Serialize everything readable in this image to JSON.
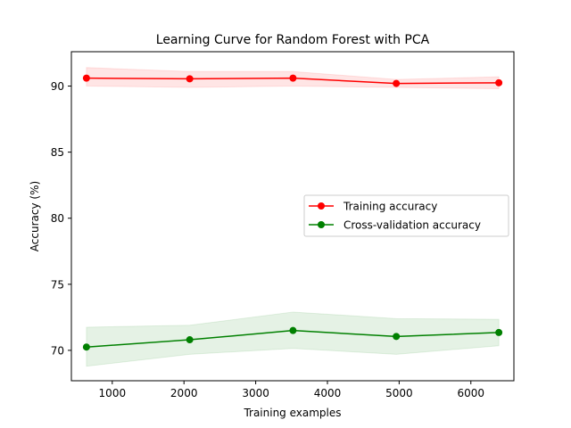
{
  "chart_data": {
    "type": "line",
    "title": "Learning Curve for Random Forest with PCA",
    "xlabel": "Training examples",
    "ylabel": "Accuracy (%)",
    "xlim": [
      430,
      6600
    ],
    "ylim": [
      67.7,
      92.6
    ],
    "x_ticks": [
      1000,
      2000,
      3000,
      4000,
      5000,
      6000
    ],
    "y_ticks": [
      70,
      75,
      80,
      85,
      90
    ],
    "grid": false,
    "legend_position": "center-right",
    "x": [
      640,
      2080,
      3520,
      4960,
      6390
    ],
    "series": [
      {
        "name": "Training accuracy",
        "color": "#ff0000",
        "band_color": "#ff0000",
        "values": [
          90.6,
          90.55,
          90.6,
          90.2,
          90.25
        ],
        "band_lower": [
          90.0,
          89.9,
          90.0,
          89.9,
          89.8
        ],
        "band_upper": [
          91.4,
          91.1,
          91.1,
          90.5,
          90.7
        ]
      },
      {
        "name": "Cross-validation accuracy",
        "color": "#008000",
        "band_color": "#008000",
        "values": [
          70.25,
          70.8,
          71.5,
          71.05,
          71.35
        ],
        "band_lower": [
          68.8,
          69.7,
          70.15,
          69.7,
          70.35
        ],
        "band_upper": [
          71.75,
          71.9,
          72.9,
          72.4,
          72.35
        ]
      }
    ]
  }
}
